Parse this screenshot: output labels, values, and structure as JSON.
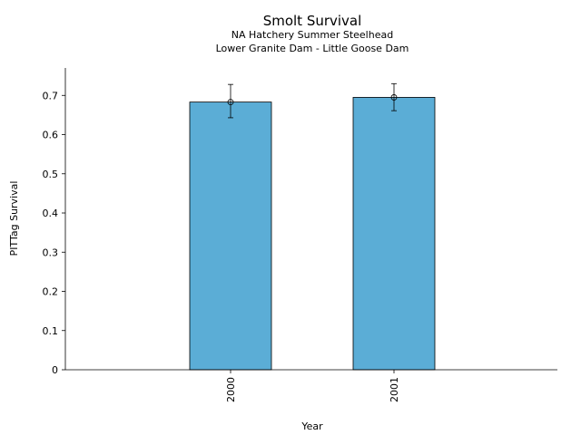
{
  "chart_data": {
    "type": "bar",
    "title": "Smolt Survival",
    "subtitle_lines": [
      "NA Hatchery Summer Steelhead",
      "Lower Granite Dam - Little Goose Dam"
    ],
    "xlabel": "Year",
    "ylabel": "PITTag Survival",
    "categories": [
      "2000",
      "2001"
    ],
    "values": [
      0.683,
      0.695
    ],
    "error_low": [
      0.643,
      0.661
    ],
    "error_high": [
      0.728,
      0.73
    ],
    "ylim": [
      0,
      0.77
    ],
    "yticks": [
      0,
      0.1,
      0.2,
      0.3,
      0.4,
      0.5,
      0.6,
      0.7
    ],
    "ytick_labels": [
      "0",
      "0.1",
      "0.2",
      "0.3",
      "0.4",
      "0.5",
      "0.6",
      "0.7"
    ],
    "bar_color": "#5BADD6",
    "grid": false,
    "legend": "none"
  }
}
